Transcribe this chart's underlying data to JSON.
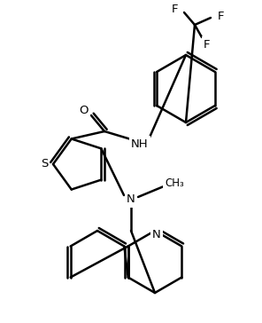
{
  "background_color": "#ffffff",
  "line_color": "#000000",
  "line_width": 1.8,
  "font_size": 9.5,
  "atoms": {
    "S": "S",
    "N_amide": "NH",
    "N_amine": "N",
    "O": "O",
    "F1": "F",
    "F2": "F",
    "F3": "F",
    "N_quin": "N",
    "Me": "CH₃"
  }
}
